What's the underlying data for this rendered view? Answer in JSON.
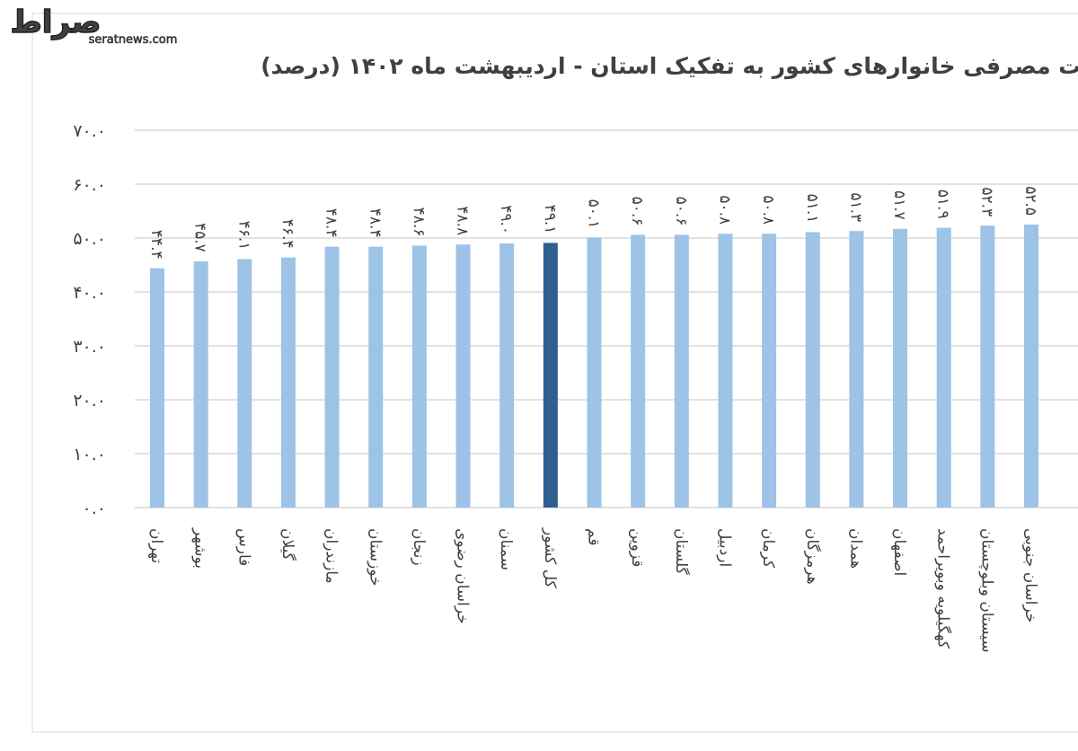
{
  "watermark": {
    "logo": "صراط",
    "site": "seratnews.com"
  },
  "chart_data": {
    "type": "bar",
    "title": "ات مصرفی خانوارهای کشور به تفکیک استان - اردیبهشت ماه ۱۴۰۲ (درصد)",
    "categories": [
      "تهران",
      "بوشهر",
      "فارس",
      "گیلان",
      "مازندران",
      "خوزستان",
      "زنجان",
      "خراسان رضوی",
      "سمنان",
      "کل کشور",
      "قم",
      "قزوین",
      "گلستان",
      "اردبیل",
      "کرمان",
      "هرمزگان",
      "همدان",
      "اصفهان",
      "کهگیلویه وبویراحمد",
      "سیستان وبلوچستان",
      "خراسان جنوبی"
    ],
    "values": [
      44.4,
      45.7,
      46.1,
      46.4,
      48.4,
      48.4,
      48.6,
      48.8,
      49.0,
      49.1,
      50.1,
      50.6,
      50.6,
      50.8,
      50.8,
      51.1,
      51.3,
      51.7,
      51.9,
      52.3,
      52.5
    ],
    "value_labels": [
      "۴۴.۴",
      "۴۵.۷",
      "۴۶.۱",
      "۴۶.۴",
      "۴۸.۴",
      "۴۸.۴",
      "۴۸.۶",
      "۴۸.۸",
      "۴۹.۰",
      "۴۹.۱",
      "۵۰.۱",
      "۵۰.۶",
      "۵۰.۶",
      "۵۰.۸",
      "۵۰.۸",
      "۵۱.۱",
      "۵۱.۳",
      "۵۱.۷",
      "۵۱.۹",
      "۵۲.۳",
      "۵۲.۵"
    ],
    "colors": [
      "#9dc3e6",
      "#9dc3e6",
      "#9dc3e6",
      "#9dc3e6",
      "#9dc3e6",
      "#9dc3e6",
      "#9dc3e6",
      "#9dc3e6",
      "#9dc3e6",
      "#2f5f8f",
      "#9dc3e6",
      "#9dc3e6",
      "#9dc3e6",
      "#9dc3e6",
      "#9dc3e6",
      "#9dc3e6",
      "#9dc3e6",
      "#9dc3e6",
      "#9dc3e6",
      "#9dc3e6",
      "#9dc3e6"
    ],
    "ylim": [
      0,
      70
    ],
    "yticks": [
      {
        "value": 0,
        "label": "۰.۰"
      },
      {
        "value": 10,
        "label": "۱۰.۰"
      },
      {
        "value": 20,
        "label": "۲۰.۰"
      },
      {
        "value": 30,
        "label": "۳۰.۰"
      },
      {
        "value": 40,
        "label": "۴۰.۰"
      },
      {
        "value": 50,
        "label": "۵۰.۰"
      },
      {
        "value": 60,
        "label": "۶۰.۰"
      },
      {
        "value": 70,
        "label": "۷۰.۰"
      }
    ],
    "grid": true
  }
}
